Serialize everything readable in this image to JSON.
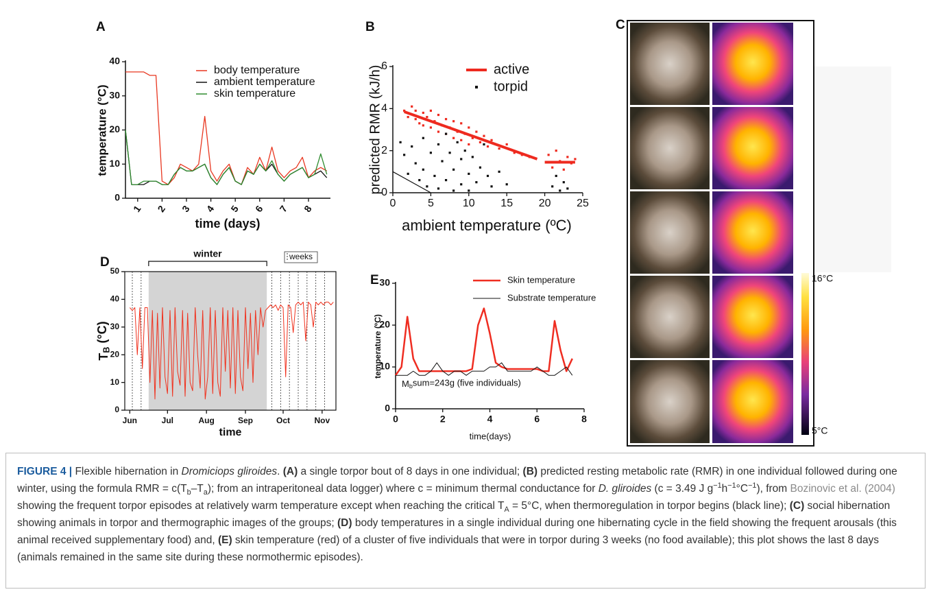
{
  "chart_data": [
    {
      "type": "line",
      "panel_label": "A",
      "xlabel": "time (days)",
      "ylabel": "temperature (°C)",
      "x": [
        0.5,
        0.75,
        1,
        1.25,
        1.5,
        1.75,
        2,
        2.25,
        2.5,
        2.75,
        3,
        3.25,
        3.5,
        3.75,
        4,
        4.25,
        4.5,
        4.75,
        5,
        5.25,
        5.5,
        5.75,
        6,
        6.25,
        6.5,
        6.75,
        7,
        7.25,
        7.5,
        7.75,
        8,
        8.25,
        8.5,
        8.75
      ],
      "xlim": [
        0.5,
        8.9
      ],
      "ylim": [
        0,
        40
      ],
      "xticks": [
        1,
        2,
        3,
        4,
        5,
        6,
        7,
        8
      ],
      "yticks": [
        0,
        10,
        20,
        30,
        40
      ],
      "series": [
        {
          "name": "body temperature",
          "color": "#e8361f",
          "values": [
            37,
            37,
            37,
            37,
            36,
            36,
            5,
            4,
            6,
            10,
            9,
            8,
            10,
            24,
            8,
            5,
            8,
            10,
            5,
            4,
            9,
            7,
            12,
            8,
            15,
            8,
            6,
            8,
            9,
            12,
            6,
            8,
            9,
            8
          ]
        },
        {
          "name": "ambient temperature",
          "color": "#111111",
          "values": [
            20,
            4,
            4,
            4,
            5,
            5,
            4,
            4,
            7,
            9,
            8,
            8,
            9,
            10,
            6,
            4,
            7,
            9,
            5,
            4,
            8,
            7,
            10,
            8,
            10,
            7,
            5,
            7,
            8,
            9,
            6,
            7,
            8,
            6
          ]
        },
        {
          "name": "skin temperature",
          "color": "#2e8b2e",
          "values": [
            20,
            4,
            4,
            5,
            5,
            5,
            4,
            4,
            7,
            9,
            8,
            8,
            9,
            10,
            6,
            4,
            7,
            9,
            5,
            4,
            8,
            7,
            10,
            8,
            11,
            7,
            5,
            7,
            8,
            9,
            6,
            7,
            13,
            7
          ]
        }
      ]
    },
    {
      "type": "scatter",
      "panel_label": "B",
      "xlabel": "ambient temperature (ºC)",
      "ylabel": "predicted RMR (kJ/h)",
      "xlim": [
        0,
        25
      ],
      "ylim": [
        0,
        6
      ],
      "xticks": [
        0,
        5,
        10,
        15,
        20,
        25
      ],
      "yticks": [
        0,
        2,
        4,
        6
      ],
      "series": [
        {
          "name": "active",
          "color": "#ee2a1f",
          "x": [
            1.5,
            2,
            2.5,
            3,
            3,
            3.5,
            4,
            4,
            4.5,
            5,
            5,
            5.5,
            6,
            6,
            6.5,
            7,
            7,
            7.5,
            8,
            8,
            8.5,
            9,
            9,
            9.5,
            10,
            10,
            10.5,
            11,
            11.5,
            12,
            12.5,
            13,
            14,
            15,
            16,
            17,
            18,
            20.5,
            21,
            21.5,
            22,
            22.5,
            23,
            23.5,
            24
          ],
          "values": [
            3.9,
            3.6,
            4.1,
            3.5,
            3.9,
            3.3,
            3.8,
            3.2,
            3.6,
            3.9,
            3.1,
            3.4,
            3.7,
            2.9,
            3.2,
            3.5,
            2.8,
            3.1,
            3.4,
            2.6,
            2.9,
            3.3,
            2.5,
            2.8,
            3.1,
            2.3,
            2.6,
            2.9,
            2.4,
            2.7,
            2.2,
            2.5,
            2.1,
            2.3,
            1.9,
            1.8,
            1.7,
            1.8,
            1.2,
            2.0,
            1.5,
            1.1,
            1.7,
            1.4,
            1.6
          ],
          "fit_x": [
            1.5,
            19,
            null,
            20,
            24
          ],
          "fit_y": [
            3.85,
            1.6,
            null,
            1.45,
            1.45
          ]
        },
        {
          "name": "torpid",
          "color": "#111111",
          "x": [
            1,
            1.5,
            2,
            2.5,
            3,
            3.5,
            4,
            4,
            4.5,
            5,
            5.5,
            6,
            6,
            6.5,
            7,
            7,
            7.5,
            8,
            8,
            8.5,
            9,
            9,
            9.5,
            10,
            10,
            10.5,
            11,
            11.5,
            12,
            12.5,
            13,
            14,
            15,
            21,
            21.5,
            22,
            22.5,
            23
          ],
          "values": [
            2.4,
            1.8,
            0.9,
            2.2,
            1.4,
            0.6,
            2.6,
            1.1,
            0.3,
            1.9,
            0.8,
            2.3,
            0.2,
            1.5,
            2.8,
            0.6,
            1.9,
            1.1,
            0.1,
            2.4,
            1.6,
            0.4,
            2.0,
            0.9,
            0.1,
            1.7,
            0.5,
            1.2,
            2.3,
            0.8,
            0.3,
            1.0,
            0.4,
            0.3,
            0.8,
            0.1,
            0.5,
            0.2
          ],
          "fit_x": [
            0,
            5
          ],
          "fit_y": [
            1,
            0
          ]
        }
      ]
    },
    {
      "type": "line",
      "panel_label": "D",
      "xlabel": "time",
      "ylabel": [
        "T",
        "B",
        " (°C)"
      ],
      "x": [
        0,
        2,
        4,
        6,
        8,
        10,
        12,
        14,
        16,
        18,
        20,
        22,
        24,
        26,
        28,
        30,
        32,
        34,
        36,
        38,
        40,
        42,
        44,
        46,
        48,
        50,
        52,
        54,
        56,
        58,
        60,
        62,
        64,
        66,
        68,
        70,
        72,
        74,
        76,
        78,
        80,
        82,
        84,
        86,
        88,
        90,
        92,
        94,
        96,
        98,
        100,
        102,
        104,
        106,
        108,
        110,
        112,
        114,
        116,
        118,
        120,
        122,
        124,
        126,
        128,
        130,
        132,
        134,
        136,
        138,
        140,
        142,
        144,
        146,
        148,
        150,
        152,
        154,
        156,
        158,
        160,
        162
      ],
      "xlim": [
        -4,
        164
      ],
      "ylim": [
        0,
        50
      ],
      "xticks": [
        {
          "value": 0,
          "label": "Jun"
        },
        {
          "value": 30,
          "label": "Jul"
        },
        {
          "value": 61,
          "label": "Aug"
        },
        {
          "value": 92,
          "label": "Sep"
        },
        {
          "value": 122,
          "label": "Oct"
        },
        {
          "value": 153,
          "label": "Nov"
        }
      ],
      "yticks": [
        0,
        10,
        20,
        30,
        40,
        50
      ],
      "shaded_range": [
        15,
        109
      ],
      "shaded_label": "winter",
      "week_lines": [
        2,
        9,
        113,
        120,
        127,
        134,
        141,
        148,
        155
      ],
      "week_legend": "weeks",
      "series": [
        {
          "name": null,
          "color": "#f0301c",
          "values": [
            37,
            36,
            37,
            20,
            37,
            15,
            37,
            37,
            10,
            36,
            4,
            35,
            8,
            37,
            12,
            6,
            36,
            5,
            37,
            14,
            9,
            36,
            5,
            35,
            10,
            7,
            37,
            20,
            8,
            36,
            4,
            12,
            37,
            6,
            36,
            10,
            5,
            37,
            14,
            36,
            8,
            37,
            6,
            36,
            12,
            7,
            37,
            15,
            35,
            10,
            36,
            20,
            37,
            30,
            36,
            37,
            38,
            37,
            38,
            36,
            38,
            37,
            12,
            38,
            37,
            28,
            38,
            39,
            38,
            39,
            25,
            39,
            38,
            30,
            39,
            38,
            39,
            38,
            39,
            39,
            38,
            39
          ]
        }
      ]
    },
    {
      "type": "line",
      "panel_label": "E",
      "xlabel": "time(days)",
      "ylabel": "temperature (ºC)",
      "x": [
        0,
        0.25,
        0.5,
        0.75,
        1,
        1.25,
        1.5,
        1.75,
        2,
        2.25,
        2.5,
        2.75,
        3,
        3.25,
        3.5,
        3.75,
        4,
        4.25,
        4.5,
        4.75,
        5,
        5.25,
        5.5,
        5.75,
        6,
        6.25,
        6.5,
        6.75,
        7,
        7.25,
        7.5
      ],
      "xlim": [
        0,
        8
      ],
      "ylim": [
        0,
        30
      ],
      "xticks": [
        0,
        2,
        4,
        6,
        8
      ],
      "yticks": [
        0,
        10,
        20,
        30
      ],
      "annotation": [
        "M",
        "b",
        "sum=243g (five individuals)"
      ],
      "series": [
        {
          "name": "Skin temperature",
          "color": "#ef2d21",
          "values": [
            8,
            10,
            22,
            12,
            9,
            9,
            9,
            9,
            9,
            9,
            9,
            9,
            9,
            9.5,
            20,
            24,
            18,
            11,
            10,
            9.5,
            9.5,
            9.5,
            9.5,
            9.5,
            9.5,
            9,
            9,
            21,
            14,
            9,
            12
          ]
        },
        {
          "name": "Substrate temperature",
          "color": "#111111",
          "values": [
            8,
            8,
            8,
            9,
            8,
            8,
            9,
            11,
            9,
            8,
            9,
            9,
            8,
            9,
            9,
            9,
            10,
            10,
            11,
            9,
            9,
            9,
            9,
            9,
            10,
            9,
            8,
            8,
            9,
            10,
            8
          ]
        }
      ]
    }
  ],
  "panel_c": {
    "label": "C",
    "colorbar_max": "16°C",
    "colorbar_min": "5°C"
  },
  "caption": [
    "FIGURE 4 |",
    " Flexible hibernation in ",
    "Dromiciops gliroides",
    ". ",
    "(A)",
    " a single torpor bout of 8 days in one individual; ",
    "(B)",
    " predicted resting metabolic rate (RMR) in one individual followed during one winter, using the formula RMR = c(T",
    "b",
    "–T",
    "a",
    "); from an intraperitoneal data logger) where c = minimum thermal conductance for ",
    "D. gliroides",
    " (c = 3.49 J g",
    "−1",
    "h",
    "−1",
    "°C",
    "−1",
    "), from ",
    "Bozinovic et al. (2004)",
    " showing the frequent torpor episodes at relatively warm temperature except when reaching the critical T",
    "A",
    " = 5°C, when thermoregulation in torpor begins (black line); ",
    "(C)",
    " social hibernation showing animals in torpor and thermographic images of the groups; ",
    "(D)",
    " body temperatures in a single individual during one hibernating cycle in the field showing the frequent arousals (this animal received supplementary food) and, ",
    "(E)",
    " skin temperature (red) of a cluster of five individuals that were in torpor during 3 weeks (no food available); this plot shows the last 8 days (animals remained in the same site during these normothermic episodes)."
  ]
}
